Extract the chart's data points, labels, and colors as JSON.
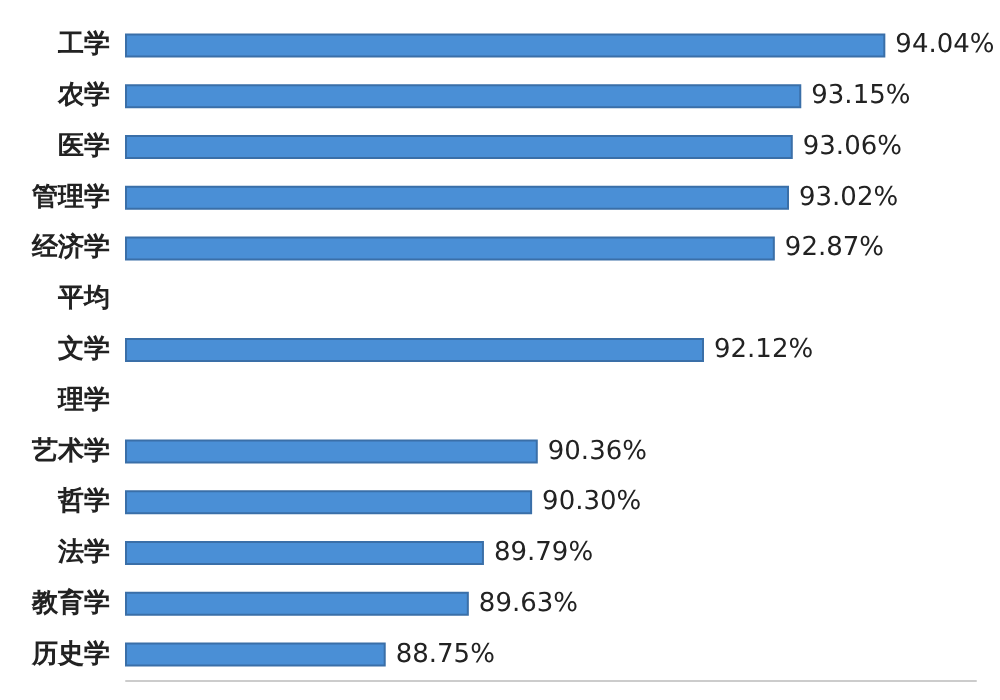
{
  "chart_data": {
    "type": "bar",
    "orientation": "horizontal",
    "categories": [
      "工学",
      "农学",
      "医学",
      "管理学",
      "经济学",
      "平均",
      "文学",
      "理学",
      "艺术学",
      "哲学",
      "法学",
      "教育学",
      "历史学"
    ],
    "values": [
      94.04,
      93.15,
      93.06,
      93.02,
      92.87,
      null,
      92.12,
      null,
      90.36,
      90.3,
      89.79,
      89.63,
      88.75
    ],
    "value_labels": [
      "94.04%",
      "93.15%",
      "93.06%",
      "93.02%",
      "92.87%",
      null,
      "92.12%",
      null,
      "90.36%",
      "90.30%",
      "89.79%",
      "89.63%",
      "88.75%"
    ],
    "color": "#4a8fd6",
    "xlim": [
      86,
      95
    ],
    "tick_labels": "y"
  }
}
